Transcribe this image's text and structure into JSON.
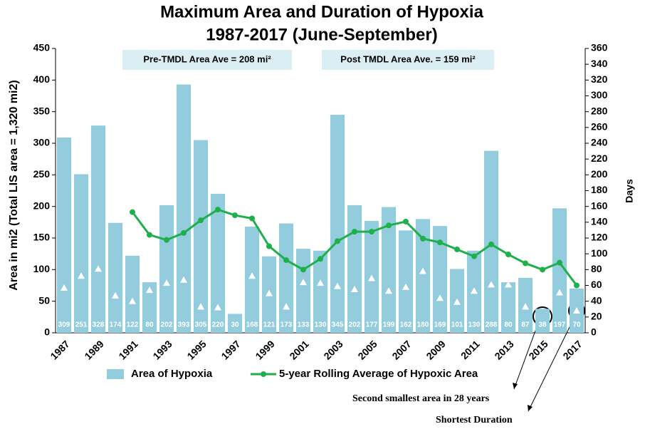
{
  "chart_data": {
    "type": "bar",
    "title": "Maximum Area and Duration of Hypoxia",
    "subtitle": "1987-2017 (June-September)",
    "y_label": "Area in mi2 (Total LIS area = 1,320 mi2)",
    "y2_label": "Days",
    "annotations": [
      "Pre-TMDL Area Ave = 208 mi²",
      "Post TMDL Area Ave. = 159 mi²",
      "Second smallest area in 28 years",
      "Shortest Duration"
    ],
    "categories": [
      "1987",
      null,
      "1989",
      null,
      "1991",
      null,
      "1993",
      null,
      "1995",
      null,
      "1997",
      null,
      "1999",
      null,
      "2001",
      null,
      "2003",
      null,
      "2005",
      null,
      "2007",
      null,
      "2009",
      null,
      "2011",
      null,
      "2013",
      null,
      "2015",
      null,
      "2017"
    ],
    "series": [
      {
        "name": "Area of Hypoxia",
        "type": "bar",
        "color": "#93cddd",
        "values": [
          309,
          251,
          328,
          174,
          122,
          80,
          202,
          393,
          305,
          220,
          30,
          168,
          121,
          173,
          133,
          130,
          345,
          202,
          177,
          199,
          162,
          180,
          169,
          101,
          130,
          288,
          80,
          87,
          38,
          197,
          70
        ]
      },
      {
        "name": "5-year Rolling Average of Hypoxic Area",
        "type": "line",
        "color": "#1faf4b",
        "values": [
          null,
          null,
          null,
          null,
          191,
          155,
          147,
          158,
          178,
          195,
          186,
          181,
          137,
          115,
          100,
          117,
          145,
          160,
          160,
          170,
          176,
          149,
          143,
          132,
          121,
          140,
          124,
          110,
          100,
          111,
          75
        ]
      },
      {
        "type": "triangle",
        "axis": "y2",
        "color": "#ffffff",
        "values": [
          57,
          72,
          81,
          47,
          40,
          54,
          63,
          67,
          33,
          32,
          null,
          72,
          50,
          33,
          64,
          63,
          59,
          55,
          69,
          53,
          58,
          78,
          44,
          39,
          53,
          61,
          61,
          33,
          null,
          51,
          28
        ]
      }
    ],
    "ylim": [
      0,
      450
    ],
    "yticks": [
      0,
      50,
      100,
      150,
      200,
      250,
      300,
      350,
      400,
      450
    ],
    "y2lim": [
      0,
      360
    ],
    "y2ticks": [
      0,
      20,
      40,
      60,
      80,
      100,
      120,
      140,
      160,
      180,
      200,
      220,
      240,
      260,
      280,
      300,
      320,
      340,
      360
    ],
    "grid": false
  }
}
